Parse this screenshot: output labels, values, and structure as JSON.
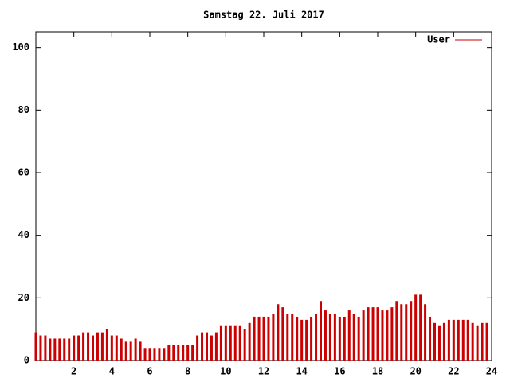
{
  "chart_data": {
    "type": "impulses",
    "title": "Samstag 22. Juli 2017",
    "x": [
      0,
      0.25,
      0.5,
      0.75,
      1,
      1.25,
      1.5,
      1.75,
      2,
      2.25,
      2.5,
      2.75,
      3,
      3.25,
      3.5,
      3.75,
      4,
      4.25,
      4.5,
      4.75,
      5,
      5.25,
      5.5,
      5.75,
      6,
      6.25,
      6.5,
      6.75,
      7,
      7.25,
      7.5,
      7.75,
      8,
      8.25,
      8.5,
      8.75,
      9,
      9.25,
      9.5,
      9.75,
      10,
      10.25,
      10.5,
      10.75,
      11,
      11.25,
      11.5,
      11.75,
      12,
      12.25,
      12.5,
      12.75,
      13,
      13.25,
      13.5,
      13.75,
      14,
      14.25,
      14.5,
      14.75,
      15,
      15.25,
      15.5,
      15.75,
      16,
      16.25,
      16.5,
      16.75,
      17,
      17.25,
      17.5,
      17.75,
      18,
      18.25,
      18.5,
      18.75,
      19,
      19.25,
      19.5,
      19.75,
      20,
      20.25,
      20.5,
      20.75,
      21,
      21.25,
      21.5,
      21.75,
      22,
      22.25,
      22.5,
      22.75,
      23,
      23.25,
      23.5,
      23.75
    ],
    "series": [
      {
        "name": "User",
        "color": "#cc0000",
        "values": [
          9,
          8,
          8,
          7,
          7,
          7,
          7,
          7,
          8,
          8,
          9,
          9,
          8,
          9,
          9,
          10,
          8,
          8,
          7,
          6,
          6,
          7,
          6,
          4,
          4,
          4,
          4,
          4,
          5,
          5,
          5,
          5,
          5,
          5,
          8,
          9,
          9,
          8,
          9,
          11,
          11,
          11,
          11,
          11,
          10,
          12,
          14,
          14,
          14,
          14,
          15,
          18,
          17,
          15,
          15,
          14,
          13,
          13,
          14,
          15,
          19,
          16,
          15,
          15,
          14,
          14,
          16,
          15,
          14,
          16,
          17,
          17,
          17,
          16,
          16,
          17,
          19,
          18,
          18,
          19,
          21,
          21,
          18,
          14,
          12,
          11,
          12,
          13,
          13,
          13,
          13,
          13,
          12,
          11,
          12,
          12
        ]
      }
    ],
    "xlim": [
      0,
      24
    ],
    "xticks": [
      2,
      4,
      6,
      8,
      10,
      12,
      14,
      16,
      18,
      20,
      22,
      24
    ],
    "ylim": [
      0,
      105
    ],
    "yticks": [
      0,
      20,
      40,
      60,
      80,
      100
    ],
    "legend": "top-right"
  }
}
